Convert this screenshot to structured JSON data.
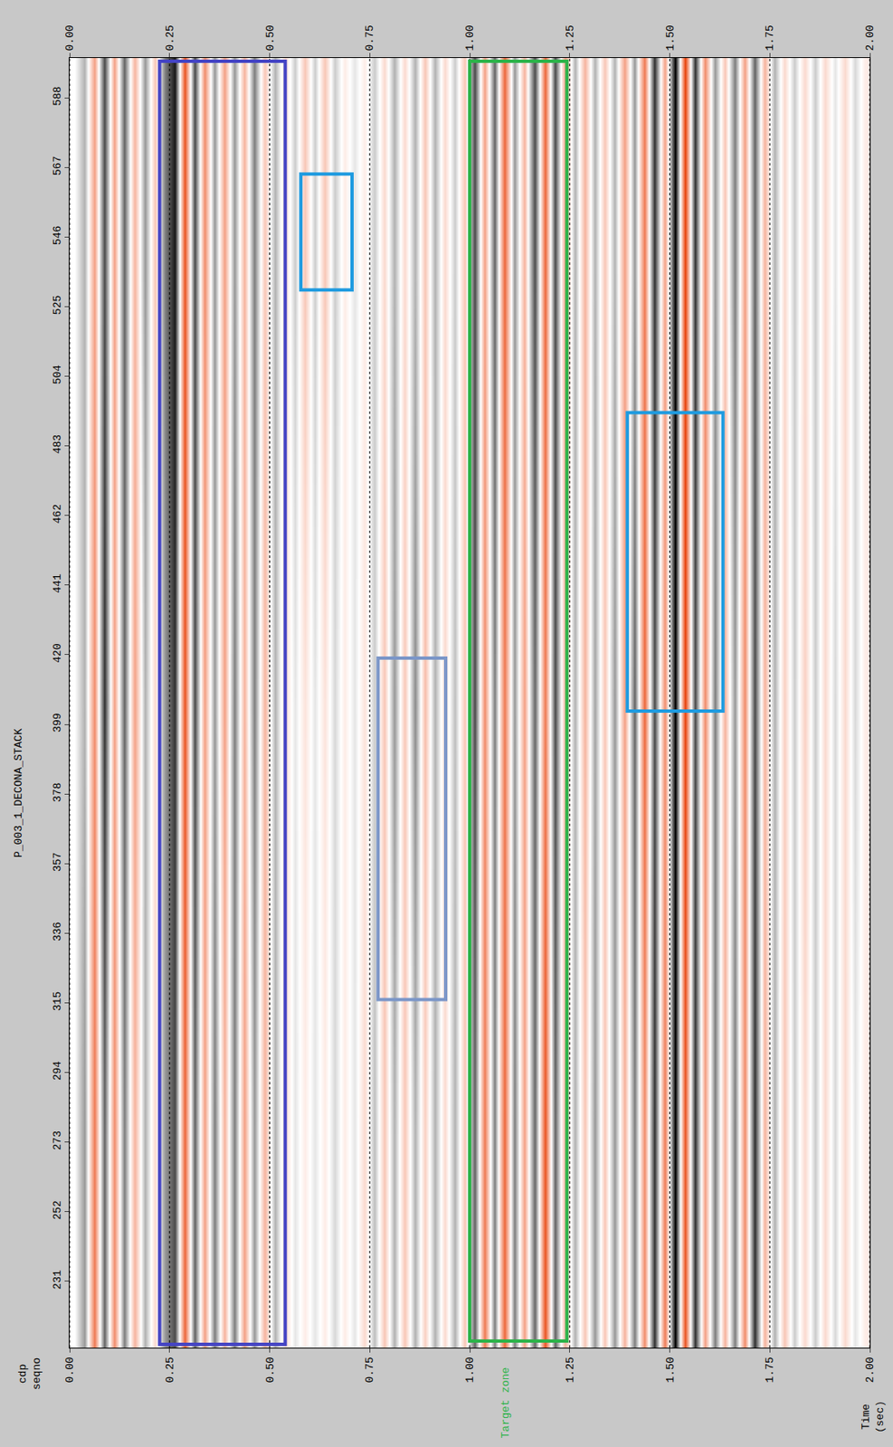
{
  "chart_data": {
    "type": "heatmap",
    "title": "P_003_1_DECONA_STACK",
    "xlabel": "Time (sec)",
    "ylabel": "cdp seqno",
    "xlim": [
      0,
      2
    ],
    "ylim": [
      211,
      600
    ],
    "xticks": [
      {
        "value": 0,
        "label": "0.00"
      },
      {
        "value": 0.25,
        "label": "0.25"
      },
      {
        "value": 0.5,
        "label": "0.50"
      },
      {
        "value": 0.75,
        "label": "0.75"
      },
      {
        "value": 1,
        "label": "1.00"
      },
      {
        "value": 1.25,
        "label": "1.25"
      },
      {
        "value": 1.5,
        "label": "1.50"
      },
      {
        "value": 1.75,
        "label": "1.75"
      },
      {
        "value": 2,
        "label": "2.00"
      }
    ],
    "yticks": [
      231,
      252,
      273,
      294,
      315,
      336,
      357,
      378,
      399,
      420,
      441,
      462,
      483,
      504,
      525,
      546,
      567,
      588
    ],
    "grid": true,
    "colors": [
      "#e8440e",
      "#ffffff",
      "#000000"
    ],
    "zlim": [
      -1,
      1
    ],
    "x": [
      0,
      0.025,
      0.05,
      0.075,
      0.1,
      0.125,
      0.15,
      0.175,
      0.2,
      0.225,
      0.25,
      0.275,
      0.3,
      0.325,
      0.35,
      0.375,
      0.4,
      0.425,
      0.45,
      0.475,
      0.5,
      0.525,
      0.55,
      0.575,
      0.6,
      0.625,
      0.65,
      0.675,
      0.7,
      0.725,
      0.75,
      0.775,
      0.8,
      0.825,
      0.85,
      0.875,
      0.9,
      0.925,
      0.95,
      0.975,
      1,
      1.025,
      1.05,
      1.075,
      1.1,
      1.125,
      1.15,
      1.175,
      1.2,
      1.225,
      1.25,
      1.275,
      1.3,
      1.325,
      1.35,
      1.375,
      1.4,
      1.425,
      1.45,
      1.475,
      1.5,
      1.525,
      1.55,
      1.575,
      1.6,
      1.625,
      1.65,
      1.675,
      1.7,
      1.725,
      1.75,
      1.775,
      1.8,
      1.825,
      1.85,
      1.875,
      1.9,
      1.925,
      1.95,
      1.975,
      2
    ],
    "y": [
      211,
      340,
      470,
      600
    ],
    "z": [
      [
        0,
        0.4,
        -0.7,
        0.6,
        -0.6,
        0.5,
        -0.4,
        0.3,
        -0.2,
        0.4,
        0.7,
        -0.8,
        0.6,
        -0.5,
        0.5,
        -0.4,
        0.5,
        -0.5,
        0.4,
        -0.4,
        0.3,
        -0.2,
        0.1,
        -0.1,
        0.1,
        -0.1,
        0.15,
        -0.1,
        0.1,
        -0.2,
        0.25,
        -0.3,
        0.3,
        -0.3,
        0.3,
        -0.25,
        0.3,
        -0.2,
        0.3,
        -0.3,
        0.6,
        -0.7,
        0.5,
        -0.8,
        0.5,
        -0.5,
        0.6,
        -0.9,
        0.6,
        -0.4,
        0.3,
        -0.3,
        0.4,
        -0.3,
        0.4,
        -0.4,
        0.5,
        -0.6,
        0.8,
        -0.7,
        1.0,
        -0.9,
        0.8,
        -0.5,
        0.5,
        -0.4,
        0.5,
        -0.6,
        0.8,
        -0.4,
        0.3,
        -0.3,
        0.2,
        -0.2,
        0.2,
        -0.2,
        0.15,
        -0.2,
        0.1,
        -0.1
      ],
      [
        0,
        0.3,
        -0.6,
        0.8,
        -0.5,
        0.6,
        -0.5,
        0.3,
        -0.2,
        0.4,
        0.8,
        -0.9,
        0.7,
        -0.5,
        0.4,
        -0.5,
        0.5,
        -0.4,
        0.5,
        -0.4,
        0.3,
        -0.2,
        0.1,
        -0.15,
        0.1,
        -0.15,
        0.15,
        -0.1,
        0.1,
        -0.15,
        0.2,
        -0.3,
        0.4,
        -0.3,
        0.45,
        -0.35,
        0.3,
        -0.2,
        0.25,
        -0.3,
        0.7,
        -0.6,
        0.5,
        -0.7,
        0.4,
        -0.5,
        0.6,
        -0.7,
        0.7,
        -0.4,
        0.3,
        -0.4,
        0.35,
        -0.3,
        0.4,
        -0.5,
        0.6,
        -0.8,
        0.7,
        -0.6,
        1.0,
        -1.0,
        0.7,
        -0.6,
        0.5,
        -0.4,
        0.4,
        -0.6,
        0.7,
        -0.4,
        0.3,
        -0.25,
        0.2,
        -0.25,
        0.2,
        -0.2,
        0.15,
        -0.2,
        0.15,
        -0.1
      ],
      [
        0,
        0.3,
        -0.5,
        0.7,
        -0.5,
        0.6,
        -0.4,
        0.4,
        -0.3,
        0.5,
        0.9,
        -0.9,
        0.7,
        -0.6,
        0.4,
        -0.5,
        0.4,
        -0.4,
        0.5,
        -0.3,
        0.3,
        -0.2,
        0.2,
        -0.3,
        0.2,
        -0.3,
        0.2,
        -0.1,
        0.1,
        -0.1,
        0.2,
        -0.2,
        0.3,
        -0.2,
        0.3,
        -0.3,
        0.3,
        -0.2,
        0.2,
        -0.3,
        0.7,
        -0.5,
        0.6,
        -0.8,
        0.4,
        -0.4,
        0.7,
        -0.8,
        0.7,
        -0.5,
        0.3,
        -0.4,
        0.3,
        -0.3,
        0.3,
        -0.5,
        0.4,
        -0.7,
        0.8,
        -0.5,
        1.0,
        -1.0,
        0.8,
        -0.6,
        0.4,
        -0.3,
        0.5,
        -0.5,
        0.6,
        -0.4,
        0.3,
        -0.2,
        0.2,
        -0.2,
        0.2,
        -0.2,
        0.1,
        -0.2,
        0.15,
        -0.1
      ]
    ],
    "annotations": [
      {
        "text": "Target zone",
        "x": 1.09,
        "color": "#2db34a"
      }
    ],
    "boxes": [
      {
        "x": [
          0.225,
          0.539
        ],
        "y": [
          212,
          599
        ],
        "color": "#4444c4"
      },
      {
        "x": [
          0.578,
          0.706
        ],
        "y": [
          530,
          565
        ],
        "color": "#1e9be0"
      },
      {
        "x": [
          0.771,
          0.94
        ],
        "y": [
          316,
          419
        ],
        "color": "#7b96c8"
      },
      {
        "x": [
          1.0,
          1.243
        ],
        "y": [
          213,
          599
        ],
        "color": "#2db34a"
      },
      {
        "x": [
          1.394,
          1.633
        ],
        "y": [
          403,
          493
        ],
        "color": "#1e9be0"
      }
    ]
  }
}
